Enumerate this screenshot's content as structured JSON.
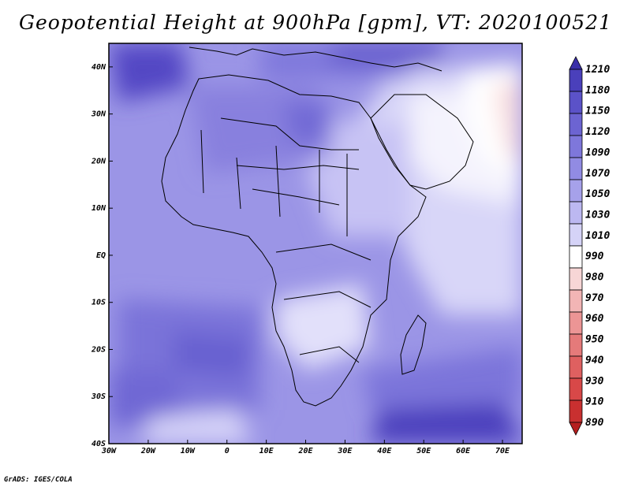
{
  "title": "Geopotential Height at 900hPa [gpm], VT: 2020100521",
  "credit": "GrADS: IGES/COLA",
  "map": {
    "projection": "latlon",
    "lon_range": [
      -30,
      75
    ],
    "lat_range": [
      -40,
      45
    ],
    "lon_ticks": [
      {
        "value": -30,
        "label": "30W"
      },
      {
        "value": -20,
        "label": "20W"
      },
      {
        "value": -10,
        "label": "10W"
      },
      {
        "value": 0,
        "label": "0"
      },
      {
        "value": 10,
        "label": "10E"
      },
      {
        "value": 20,
        "label": "20E"
      },
      {
        "value": 30,
        "label": "30E"
      },
      {
        "value": 40,
        "label": "40E"
      },
      {
        "value": 50,
        "label": "50E"
      },
      {
        "value": 60,
        "label": "60E"
      },
      {
        "value": 70,
        "label": "70E"
      }
    ],
    "lat_ticks": [
      {
        "value": 40,
        "label": "40N"
      },
      {
        "value": 30,
        "label": "30N"
      },
      {
        "value": 20,
        "label": "20N"
      },
      {
        "value": 10,
        "label": "10N"
      },
      {
        "value": 0,
        "label": "EQ"
      },
      {
        "value": -10,
        "label": "10S"
      },
      {
        "value": -20,
        "label": "20S"
      },
      {
        "value": -30,
        "label": "30S"
      },
      {
        "value": -40,
        "label": "40S"
      }
    ]
  },
  "colorbar": {
    "levels": [
      "1210",
      "1180",
      "1150",
      "1120",
      "1090",
      "1070",
      "1050",
      "1030",
      "1010",
      "990",
      "980",
      "970",
      "960",
      "950",
      "940",
      "930",
      "910",
      "890"
    ],
    "colors": [
      "#3a2fa8",
      "#4a40bb",
      "#5b52c8",
      "#6c64d2",
      "#7e77db",
      "#918be3",
      "#a6a1ea",
      "#bcb8f1",
      "#d5d3f7",
      "#ffffff",
      "#f7d6d6",
      "#f2b5b5",
      "#ec9595",
      "#e57a7a",
      "#df6060",
      "#d84848",
      "#c93030",
      "#b51f1f"
    ]
  }
}
